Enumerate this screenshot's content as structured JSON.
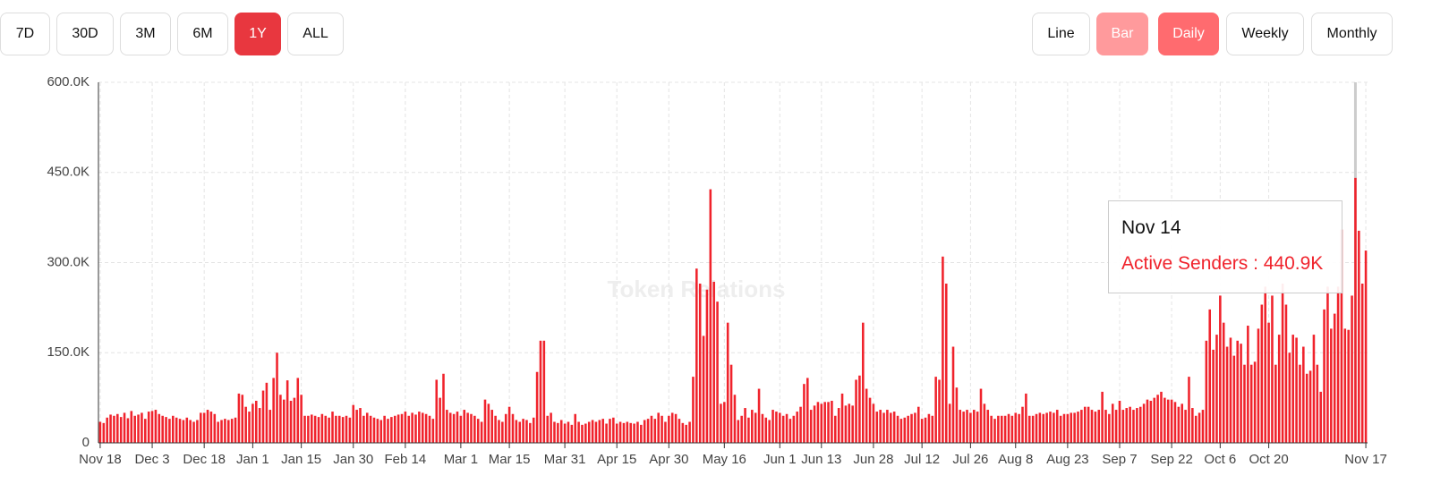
{
  "controls": {
    "ranges": [
      "7D",
      "30D",
      "3M",
      "6M",
      "1Y",
      "ALL"
    ],
    "active_range": "1Y",
    "modes": [
      "Line",
      "Bar"
    ],
    "active_mode": "Bar",
    "intervals": [
      "Daily",
      "Weekly",
      "Monthly"
    ],
    "active_interval": "Daily"
  },
  "chart_data": {
    "type": "bar",
    "watermark": "Token Relations",
    "tooltip": {
      "title": "Nov 14",
      "text": "Active Senders : 440.9K"
    },
    "ylim": [
      0,
      600
    ],
    "yticks": [
      0,
      {
        "value": 150,
        "label": "150.0K"
      },
      {
        "value": 300,
        "label": "300.0K"
      },
      {
        "value": 450,
        "label": "450.0K"
      },
      {
        "value": 600,
        "label": "600.0K"
      }
    ],
    "grid": true,
    "categories": [
      "Nov 18",
      null,
      null,
      null,
      null,
      null,
      null,
      null,
      null,
      null,
      null,
      null,
      null,
      null,
      null,
      "Dec 3",
      null,
      null,
      null,
      null,
      null,
      null,
      null,
      null,
      null,
      null,
      null,
      null,
      null,
      null,
      "Dec 18",
      null,
      null,
      null,
      null,
      null,
      null,
      null,
      null,
      null,
      null,
      null,
      null,
      null,
      "Jan 1",
      null,
      null,
      null,
      null,
      null,
      null,
      null,
      null,
      null,
      null,
      null,
      null,
      null,
      "Jan 15",
      null,
      null,
      null,
      null,
      null,
      null,
      null,
      null,
      null,
      null,
      null,
      null,
      null,
      null,
      "Jan 30",
      null,
      null,
      null,
      null,
      null,
      null,
      null,
      null,
      null,
      null,
      null,
      null,
      null,
      null,
      "Feb 14",
      null,
      null,
      null,
      null,
      null,
      null,
      null,
      null,
      null,
      null,
      null,
      null,
      null,
      null,
      null,
      "Mar 1",
      null,
      null,
      null,
      null,
      null,
      null,
      null,
      null,
      null,
      null,
      null,
      null,
      null,
      "Mar 15",
      null,
      null,
      null,
      null,
      null,
      null,
      null,
      null,
      null,
      null,
      null,
      null,
      null,
      null,
      null,
      "Mar 31",
      null,
      null,
      null,
      null,
      null,
      null,
      null,
      null,
      null,
      null,
      null,
      null,
      null,
      null,
      "Apr 15",
      null,
      null,
      null,
      null,
      null,
      null,
      null,
      null,
      null,
      null,
      null,
      null,
      null,
      null,
      "Apr 30",
      null,
      null,
      null,
      null,
      null,
      null,
      null,
      null,
      null,
      null,
      null,
      null,
      null,
      null,
      null,
      "May 16",
      null,
      null,
      null,
      null,
      null,
      null,
      null,
      null,
      null,
      null,
      null,
      null,
      null,
      null,
      null,
      "Jun 1",
      null,
      null,
      null,
      null,
      null,
      null,
      null,
      null,
      null,
      null,
      null,
      "Jun 13",
      null,
      null,
      null,
      null,
      null,
      null,
      null,
      null,
      null,
      null,
      null,
      null,
      null,
      null,
      "Jun 28",
      null,
      null,
      null,
      null,
      null,
      null,
      null,
      null,
      null,
      null,
      null,
      null,
      null,
      "Jul 12",
      null,
      null,
      null,
      null,
      null,
      null,
      null,
      null,
      null,
      null,
      null,
      null,
      null,
      "Jul 26",
      null,
      null,
      null,
      null,
      null,
      null,
      null,
      null,
      null,
      null,
      null,
      null,
      "Aug 8",
      null,
      null,
      null,
      null,
      null,
      null,
      null,
      null,
      null,
      null,
      null,
      null,
      null,
      null,
      "Aug 23",
      null,
      null,
      null,
      null,
      null,
      null,
      null,
      null,
      null,
      null,
      null,
      null,
      null,
      null,
      "Sep 7",
      null,
      null,
      null,
      null,
      null,
      null,
      null,
      null,
      null,
      null,
      null,
      null,
      null,
      null,
      "Sep 22",
      null,
      null,
      null,
      null,
      null,
      null,
      null,
      null,
      null,
      null,
      null,
      null,
      null,
      "Oct 6",
      null,
      null,
      null,
      null,
      null,
      null,
      null,
      null,
      null,
      null,
      null,
      null,
      null,
      "Oct 20",
      null,
      null,
      null,
      null,
      null,
      null,
      null,
      null,
      null,
      null,
      null,
      null,
      null,
      null,
      null,
      null,
      null,
      null,
      null,
      null,
      null,
      null,
      null,
      null,
      null,
      null,
      null,
      "Nov 17"
    ],
    "series": [
      {
        "color": "#f0232c",
        "values": [
          35,
          33,
          42,
          47,
          45,
          48,
          43,
          50,
          41,
          53,
          45,
          47,
          50,
          40,
          52,
          53,
          55,
          48,
          45,
          43,
          40,
          45,
          42,
          40,
          38,
          42,
          38,
          35,
          38,
          50,
          50,
          55,
          52,
          48,
          35,
          38,
          40,
          38,
          40,
          42,
          82,
          80,
          60,
          52,
          65,
          70,
          58,
          87,
          100,
          55,
          108,
          150,
          80,
          72,
          104,
          70,
          75,
          108,
          80,
          45,
          45,
          47,
          45,
          43,
          48,
          45,
          42,
          52,
          45,
          45,
          43,
          45,
          42,
          63,
          55,
          58,
          45,
          50,
          45,
          42,
          40,
          38,
          45,
          40,
          43,
          45,
          47,
          48,
          52,
          45,
          50,
          47,
          52,
          50,
          48,
          45,
          40,
          105,
          75,
          115,
          55,
          50,
          48,
          52,
          45,
          55,
          50,
          48,
          45,
          40,
          35,
          72,
          65,
          55,
          45,
          38,
          35,
          48,
          60,
          48,
          38,
          35,
          40,
          38,
          33,
          42,
          118,
          170,
          170,
          45,
          50,
          35,
          33,
          38,
          32,
          35,
          30,
          48,
          35,
          30,
          32,
          35,
          38,
          35,
          38,
          40,
          32,
          40,
          42,
          32,
          35,
          33,
          35,
          33,
          32,
          35,
          30,
          38,
          40,
          45,
          40,
          50,
          45,
          35,
          45,
          50,
          48,
          40,
          33,
          30,
          35,
          110,
          290,
          265,
          178,
          255,
          422,
          268,
          235,
          65,
          68,
          200,
          130,
          80,
          38,
          45,
          58,
          42,
          55,
          50,
          90,
          48,
          42,
          38,
          55,
          52,
          50,
          45,
          48,
          40,
          45,
          52,
          60,
          98,
          108,
          55,
          62,
          68,
          65,
          68,
          68,
          70,
          45,
          58,
          82,
          62,
          65,
          62,
          105,
          112,
          200,
          90,
          75,
          65,
          52,
          55,
          50,
          55,
          50,
          52,
          45,
          40,
          42,
          45,
          48,
          50,
          60,
          40,
          42,
          48,
          45,
          110,
          105,
          310,
          265,
          65,
          160,
          92,
          55,
          52,
          55,
          50,
          55,
          52,
          90,
          65,
          55,
          45,
          40,
          45,
          45,
          45,
          48,
          45,
          50,
          48,
          60,
          82,
          45,
          45,
          48,
          50,
          48,
          50,
          52,
          50,
          55,
          45,
          48,
          48,
          50,
          50,
          52,
          55,
          60,
          60,
          55,
          52,
          55,
          85,
          55,
          48,
          65,
          55,
          70,
          55,
          58,
          60,
          55,
          58,
          60,
          65,
          72,
          70,
          75,
          80,
          85,
          75,
          72,
          72,
          68,
          60,
          65,
          55,
          110,
          58,
          45,
          50,
          55,
          170,
          222,
          155,
          180,
          245,
          200,
          160,
          175,
          145,
          170,
          165,
          130,
          195,
          130,
          135,
          190,
          230,
          260,
          200,
          245,
          130,
          180,
          265,
          230,
          150,
          180,
          175,
          130,
          160,
          115,
          120,
          180,
          130,
          85,
          222,
          260,
          190,
          215,
          260,
          355,
          190,
          188,
          245,
          440.9,
          353,
          265,
          320
        ]
      }
    ]
  }
}
